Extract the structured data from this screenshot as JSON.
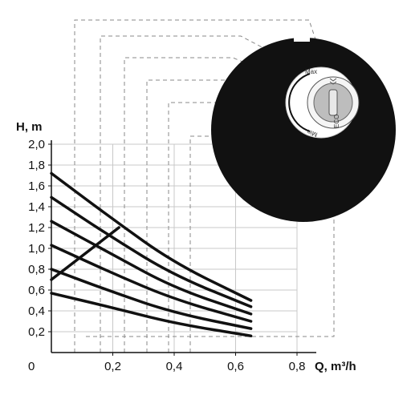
{
  "chart_data": {
    "type": "line",
    "ylabel": "H, m",
    "xlabel": "Q, m³/h",
    "origin_label": "0",
    "x_ticks": [
      "0,2",
      "0,4",
      "0,6",
      "0,8"
    ],
    "y_ticks": [
      "0,2",
      "0,4",
      "0,6",
      "0,8",
      "1,0",
      "1,2",
      "1,4",
      "1,6",
      "1,8",
      "2,0"
    ],
    "xlim": [
      0,
      0.8
    ],
    "ylim": [
      0,
      2.0
    ],
    "grid": true,
    "series": [
      {
        "points": [
          [
            0,
            1.72
          ],
          [
            0.2,
            1.28
          ],
          [
            0.4,
            0.86
          ],
          [
            0.65,
            0.5
          ]
        ]
      },
      {
        "points": [
          [
            0,
            1.49
          ],
          [
            0.2,
            1.1
          ],
          [
            0.4,
            0.74
          ],
          [
            0.65,
            0.44
          ]
        ]
      },
      {
        "points": [
          [
            0,
            1.26
          ],
          [
            0.2,
            0.94
          ],
          [
            0.4,
            0.62
          ],
          [
            0.65,
            0.37
          ]
        ]
      },
      {
        "points": [
          [
            0,
            1.03
          ],
          [
            0.2,
            0.76
          ],
          [
            0.4,
            0.51
          ],
          [
            0.65,
            0.3
          ]
        ]
      },
      {
        "points": [
          [
            0,
            0.8
          ],
          [
            0.2,
            0.58
          ],
          [
            0.4,
            0.38
          ],
          [
            0.65,
            0.23
          ]
        ]
      },
      {
        "points": [
          [
            0,
            0.57
          ],
          [
            0.2,
            0.43
          ],
          [
            0.4,
            0.28
          ],
          [
            0.65,
            0.16
          ]
        ]
      }
    ],
    "limit_line": {
      "points": [
        [
          0,
          0.7
        ],
        [
          0.22,
          1.2
        ]
      ]
    }
  },
  "dial": {
    "max_label": "Max",
    "min_label": "Min",
    "eco_label": "ECO"
  }
}
